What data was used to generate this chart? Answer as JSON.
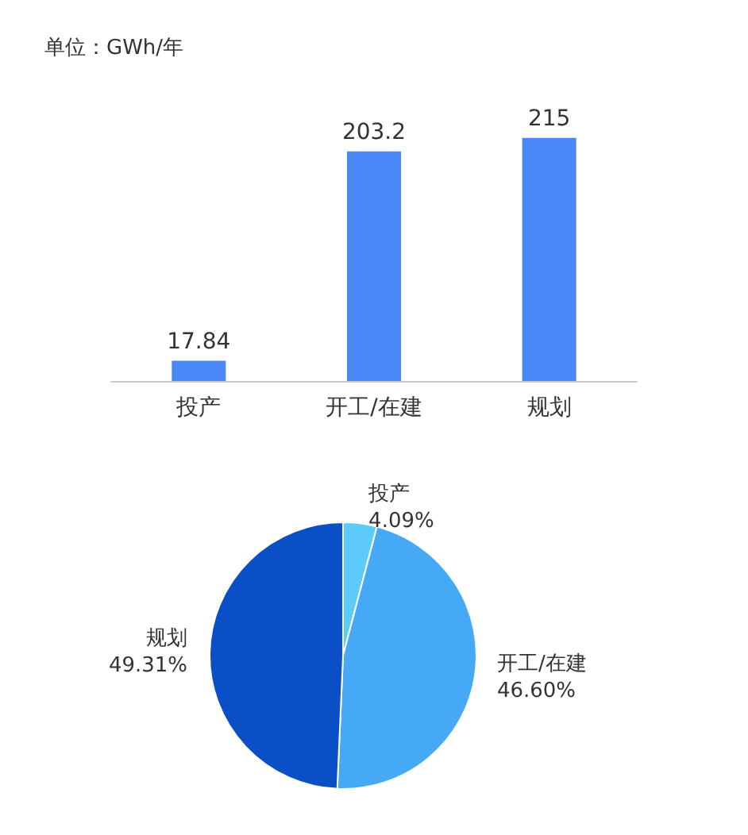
{
  "chart_data": [
    {
      "type": "bar",
      "ylabel": "单位：GWh/年",
      "categories": [
        "投产",
        "开工/在建",
        "规划"
      ],
      "values": [
        17.84,
        203.2,
        215
      ],
      "color": "#4a88f8",
      "data_labels": true,
      "tick_labels": "x",
      "grid": false,
      "legend": false
    },
    {
      "type": "pie",
      "categories": [
        "投产",
        "开工/在建",
        "规划"
      ],
      "values": [
        4.09,
        46.6,
        49.31
      ],
      "colors": [
        "#5ccbfa",
        "#45a9f6",
        "#0b4fc6"
      ],
      "value_labels": [
        "4.09%",
        "46.60%",
        "49.31%"
      ],
      "legend": false
    }
  ]
}
